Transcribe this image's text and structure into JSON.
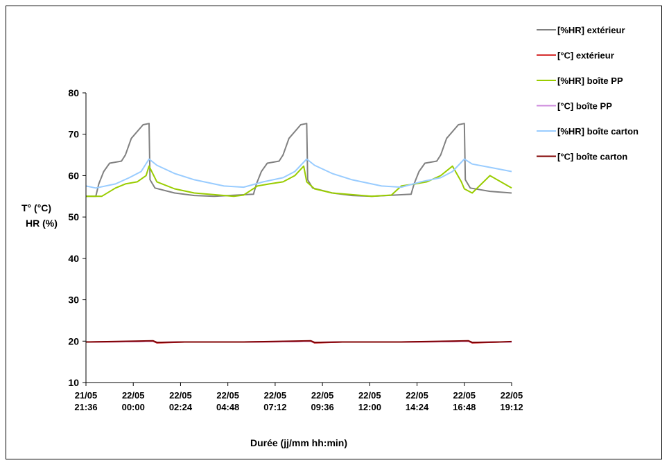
{
  "chart_data": {
    "type": "line",
    "title": "",
    "xlabel": "Durée (jj/mm hh:min)",
    "ylabel_lines": [
      "T° (°C)",
      "HR (%)"
    ],
    "ylim": [
      10,
      80
    ],
    "yticks": [
      10,
      20,
      30,
      40,
      50,
      60,
      70,
      80
    ],
    "xlim_hours": [
      0,
      21.6
    ],
    "xticks": [
      {
        "date": "21/05",
        "time": "21:36"
      },
      {
        "date": "22/05",
        "time": "00:00"
      },
      {
        "date": "22/05",
        "time": "02:24"
      },
      {
        "date": "22/05",
        "time": "04:48"
      },
      {
        "date": "22/05",
        "time": "07:12"
      },
      {
        "date": "22/05",
        "time": "09:36"
      },
      {
        "date": "22/05",
        "time": "12:00"
      },
      {
        "date": "22/05",
        "time": "14:24"
      },
      {
        "date": "22/05",
        "time": "16:48"
      },
      {
        "date": "22/05",
        "time": "19:12"
      }
    ],
    "legend_position": "top-right",
    "series": [
      {
        "name": "[%HR] extérieur",
        "color": "#808080",
        "x": [
          0,
          0.5,
          0.65,
          0.9,
          1.2,
          1.8,
          2.0,
          2.3,
          2.9,
          3.1,
          3.2,
          3.25,
          3.5,
          4.5,
          5.5,
          6.5,
          8.5,
          8.65,
          8.9,
          9.2,
          9.8,
          10.0,
          10.3,
          10.9,
          11.1,
          11.2,
          11.25,
          11.5,
          12.5,
          13.5,
          14.5,
          16.5,
          16.65,
          16.9,
          17.2,
          17.8,
          18.0,
          18.3,
          18.9,
          19.1,
          19.2,
          19.25,
          19.5,
          20.5,
          21.6
        ],
        "y": [
          55,
          55,
          58,
          61,
          63,
          63.5,
          65,
          69,
          72.3,
          72.5,
          72.6,
          59,
          57,
          55.8,
          55.2,
          55,
          55.5,
          58,
          61,
          63,
          63.5,
          65,
          69,
          72.3,
          72.5,
          72.6,
          59,
          57,
          55.8,
          55.2,
          55,
          55.5,
          58,
          61,
          63,
          63.5,
          65,
          69,
          72.3,
          72.5,
          72.6,
          59,
          57,
          56.2,
          55.8
        ]
      },
      {
        "name": "[°C] extérieur",
        "color": "#cc0000",
        "x": [
          0,
          2.5,
          3.4,
          3.6,
          5.0,
          8.0,
          10.5,
          11.4,
          11.6,
          13.0,
          16.0,
          18.5,
          19.4,
          19.6,
          21.0,
          21.6
        ],
        "y": [
          19.8,
          19.9,
          20.0,
          19.6,
          19.8,
          19.8,
          19.9,
          20.0,
          19.6,
          19.8,
          19.8,
          19.9,
          20.0,
          19.6,
          19.8,
          19.8
        ]
      },
      {
        "name": "[%HR] boîte PP",
        "color": "#99cc00",
        "x": [
          0,
          0.8,
          1.5,
          2.0,
          2.6,
          3.05,
          3.2,
          3.6,
          4.5,
          5.5,
          6.5,
          7.5,
          8.0,
          8.7,
          9.3,
          10.0,
          10.6,
          11.05,
          11.2,
          11.6,
          12.5,
          13.5,
          14.5,
          15.5,
          16.0,
          16.7,
          17.3,
          18.0,
          18.6,
          19.05,
          19.2,
          19.6,
          20.5,
          21.6
        ],
        "y": [
          55,
          55,
          57,
          58,
          58.5,
          60,
          62.3,
          58.5,
          56.8,
          55.8,
          55.4,
          55,
          55.3,
          57.5,
          58,
          58.5,
          60,
          62.3,
          58.5,
          56.8,
          55.8,
          55.4,
          55,
          55.3,
          57.5,
          58,
          58.5,
          60,
          62.3,
          58.5,
          56.8,
          55.8,
          60,
          57
        ]
      },
      {
        "name": "[°C] boîte PP",
        "color": "#cc88dd",
        "x": [
          0,
          2.5,
          3.4,
          3.6,
          5.0,
          8.0,
          10.5,
          11.4,
          11.6,
          13.0,
          16.0,
          18.5,
          19.4,
          19.6,
          21.0,
          21.6
        ],
        "y": [
          19.8,
          19.9,
          20.0,
          19.7,
          19.8,
          19.8,
          19.9,
          20.0,
          19.7,
          19.8,
          19.8,
          19.9,
          20.0,
          19.7,
          19.8,
          19.8
        ]
      },
      {
        "name": "[%HR] boîte carton",
        "color": "#99ccff",
        "x": [
          0,
          0.5,
          1.5,
          2.2,
          2.8,
          3.2,
          3.6,
          4.5,
          5.5,
          6.5,
          7.0,
          8.0,
          9.0,
          10.0,
          10.6,
          11.2,
          11.6,
          12.5,
          13.5,
          14.5,
          15.0,
          16.0,
          17.0,
          18.0,
          18.6,
          19.2,
          19.6,
          20.5,
          21.6
        ],
        "y": [
          57.5,
          57,
          58,
          59.5,
          61,
          64,
          62.5,
          60.5,
          59,
          58,
          57.5,
          57.2,
          58.5,
          59.5,
          61,
          64,
          62.5,
          60.5,
          59,
          58,
          57.5,
          57.2,
          58.5,
          59.5,
          61,
          64,
          62.8,
          62,
          61
        ]
      },
      {
        "name": "[°C] boîte carton",
        "color": "#800000",
        "x": [
          0,
          2.5,
          3.4,
          3.6,
          5.0,
          8.0,
          10.5,
          11.4,
          11.6,
          13.0,
          16.0,
          18.5,
          19.4,
          19.6,
          21.0,
          21.6
        ],
        "y": [
          19.8,
          20.0,
          20.1,
          19.7,
          19.8,
          19.8,
          20.0,
          20.1,
          19.7,
          19.8,
          19.8,
          20.0,
          20.1,
          19.7,
          19.8,
          19.9
        ]
      }
    ]
  }
}
